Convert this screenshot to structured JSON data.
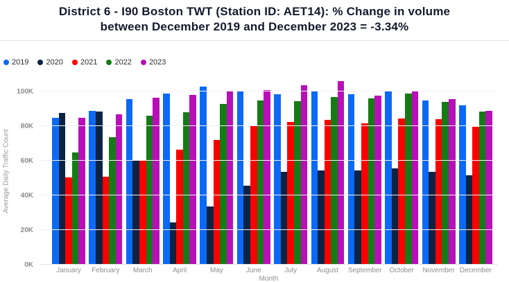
{
  "header": {
    "title_line1": "District 6 - I90 Boston TWT (Station ID: AET14): % Change in volume",
    "title_line2": "between December 2019 and December 2023 = -3.34%"
  },
  "chart_data": {
    "type": "bar",
    "title": "District 6 - I90 Boston TWT (Station ID: AET14): % Change in volume between December 2019 and December 2023 = -3.34%",
    "xlabel": "Month",
    "ylabel": "Average Daily Traffic Count",
    "value_unit": "thousands",
    "grid": true,
    "legend_position": "top-left",
    "categories": [
      "January",
      "February",
      "March",
      "April",
      "May",
      "June",
      "July",
      "August",
      "September",
      "October",
      "November",
      "December"
    ],
    "series": [
      {
        "name": "2019",
        "color": "#0c69f5",
        "values": [
          85,
          89,
          95.5,
          99,
          103,
          100.5,
          98.5,
          100.5,
          98.5,
          100.5,
          95,
          92
        ]
      },
      {
        "name": "2020",
        "color": "#0b2444",
        "values": [
          87.5,
          88.5,
          60.5,
          24.5,
          33.5,
          45.5,
          53.5,
          54.5,
          54.5,
          55.5,
          53.5,
          51.5
        ]
      },
      {
        "name": "2021",
        "color": "#fb0000",
        "values": [
          50.5,
          51,
          60,
          66.5,
          72,
          80.5,
          82.5,
          83.5,
          81.5,
          84.5,
          84,
          79.5
        ]
      },
      {
        "name": "2022",
        "color": "#157c15",
        "values": [
          65,
          73.5,
          86,
          88,
          93,
          95,
          94.5,
          97,
          96,
          99,
          94,
          88.5
        ]
      },
      {
        "name": "2023",
        "color": "#b80fb8",
        "values": [
          85,
          87,
          96.5,
          98,
          100.5,
          101,
          103.5,
          106,
          97.5,
          100,
          95.5,
          88.9
        ]
      }
    ],
    "ytick_labels": [
      "0K",
      "20K",
      "40K",
      "60K",
      "80K",
      "100K"
    ],
    "ytick_values": [
      0,
      20,
      40,
      60,
      80,
      100
    ],
    "ylim": [
      0,
      108
    ]
  }
}
